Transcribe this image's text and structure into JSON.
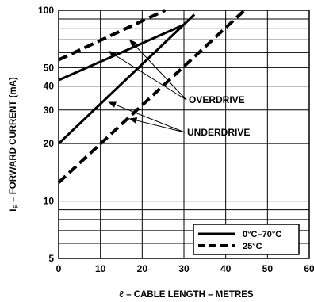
{
  "chart_data": {
    "type": "line",
    "title": "",
    "xlabel": "ℓ – CABLE LENGTH – METRES",
    "ylabel_main": "I",
    "ylabel_sub": "F",
    "ylabel_rest": " – FORWARD CURRENT (mA)",
    "x_scale": "linear",
    "y_scale": "log",
    "xlim": [
      0,
      60
    ],
    "ylim": [
      5,
      100
    ],
    "x_ticks": [
      0,
      10,
      20,
      30,
      40,
      50,
      60
    ],
    "x_tick_labels": [
      "0",
      "10",
      "20",
      "30",
      "40",
      "50",
      "60"
    ],
    "y_ticks": [
      5,
      10,
      20,
      30,
      40,
      50,
      100
    ],
    "y_tick_labels": [
      "5",
      "10",
      "20",
      "30",
      "40",
      "50",
      "100"
    ],
    "grid": true,
    "series": [
      {
        "legend_ref": 0,
        "style": "solid",
        "x": [
          0,
          30
        ],
        "y": [
          43,
          84
        ]
      },
      {
        "legend_ref": 0,
        "style": "solid",
        "x": [
          0,
          32.5
        ],
        "y": [
          20,
          95
        ]
      },
      {
        "legend_ref": 1,
        "style": "dashed",
        "x": [
          0,
          25.5
        ],
        "y": [
          55,
          100
        ]
      },
      {
        "legend_ref": 1,
        "style": "dashed",
        "x": [
          0,
          44.5
        ],
        "y": [
          12.5,
          100
        ]
      }
    ],
    "annotations": [
      {
        "text": "OVERDRIVE",
        "points_to": [
          [
            12,
            61
          ],
          [
            17,
            70
          ]
        ]
      },
      {
        "text": "UNDERDRIVE",
        "points_to": [
          [
            12,
            33
          ],
          [
            17,
            27
          ]
        ]
      }
    ],
    "legend": {
      "position": "bottom-right",
      "entries": [
        {
          "label": "0°C–70°C",
          "style": "solid"
        },
        {
          "label": "25°C",
          "style": "dashed"
        }
      ]
    }
  }
}
